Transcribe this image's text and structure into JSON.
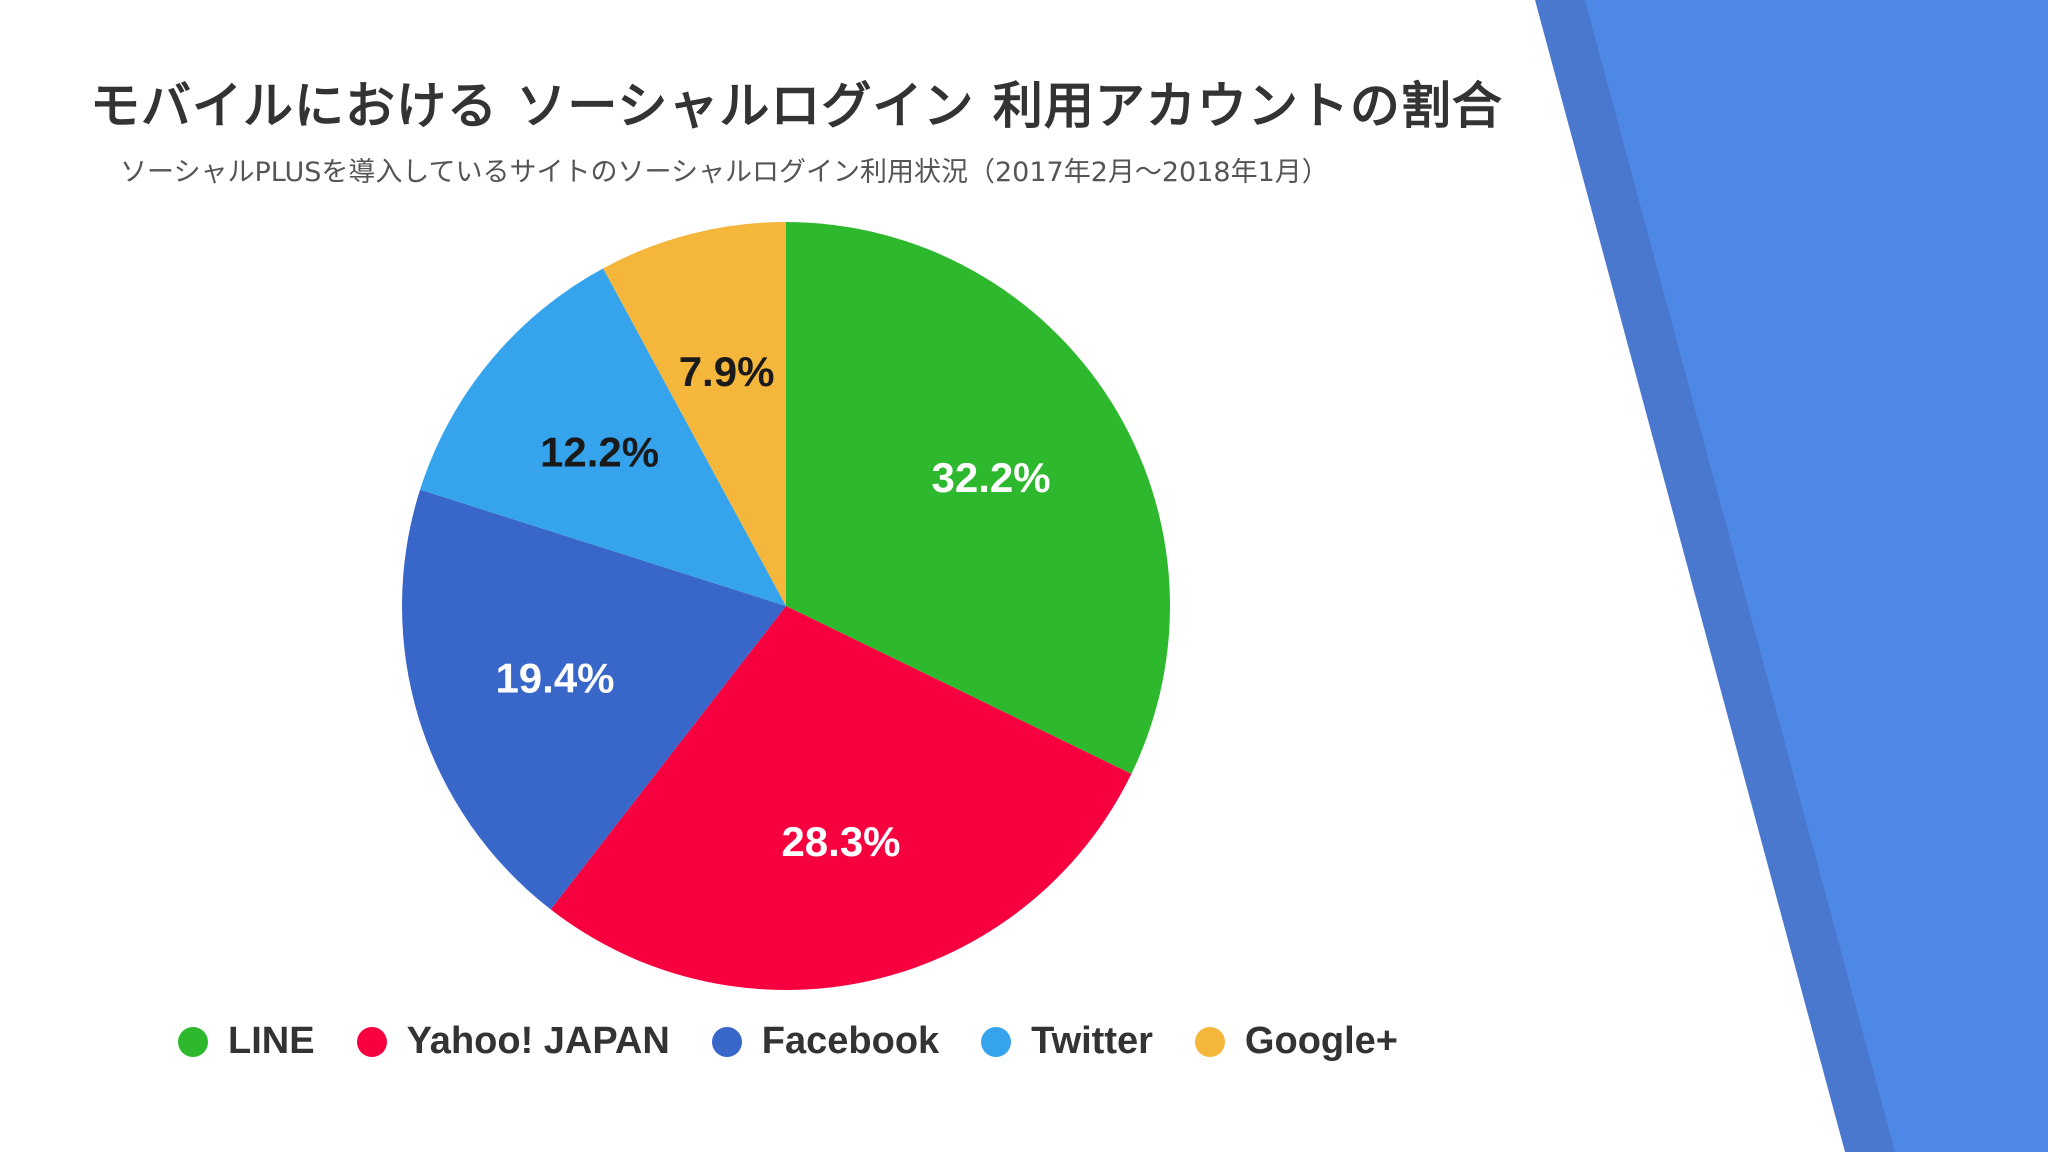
{
  "title": "モバイルにおける ソーシャルログイン 利用アカウントの割合",
  "subtitle": "ソーシャルPLUSを導入しているサイトのソーシャルログイン利用状況（2017年2月〜2018年1月）",
  "colors": {
    "line": "#2db82d",
    "yahoo": "#f70040",
    "facebook": "#3966c9",
    "twitter": "#35a4ec",
    "google": "#f4b63b",
    "decor_dark": "#4a78cf",
    "decor_light": "#4e88e6"
  },
  "chart_data": {
    "type": "pie",
    "title": "モバイルにおける ソーシャルログイン 利用アカウントの割合",
    "subtitle": "ソーシャルPLUSを導入しているサイトのソーシャルログイン利用状況（2017年2月〜2018年1月）",
    "categories": [
      "LINE",
      "Yahoo! JAPAN",
      "Facebook",
      "Twitter",
      "Google+"
    ],
    "values": [
      32.2,
      28.3,
      19.4,
      12.2,
      7.9
    ],
    "labels": [
      "32.2%",
      "28.3%",
      "19.4%",
      "12.2%",
      "7.9%"
    ],
    "colors": [
      "#2db82d",
      "#f70040",
      "#3966c9",
      "#35a4ec",
      "#f4b63b"
    ],
    "label_colors": [
      "#ffffff",
      "#ffffff",
      "#ffffff",
      "#1a1a1a",
      "#1a1a1a"
    ],
    "start": "top",
    "direction": "clockwise",
    "legend_position": "bottom"
  }
}
